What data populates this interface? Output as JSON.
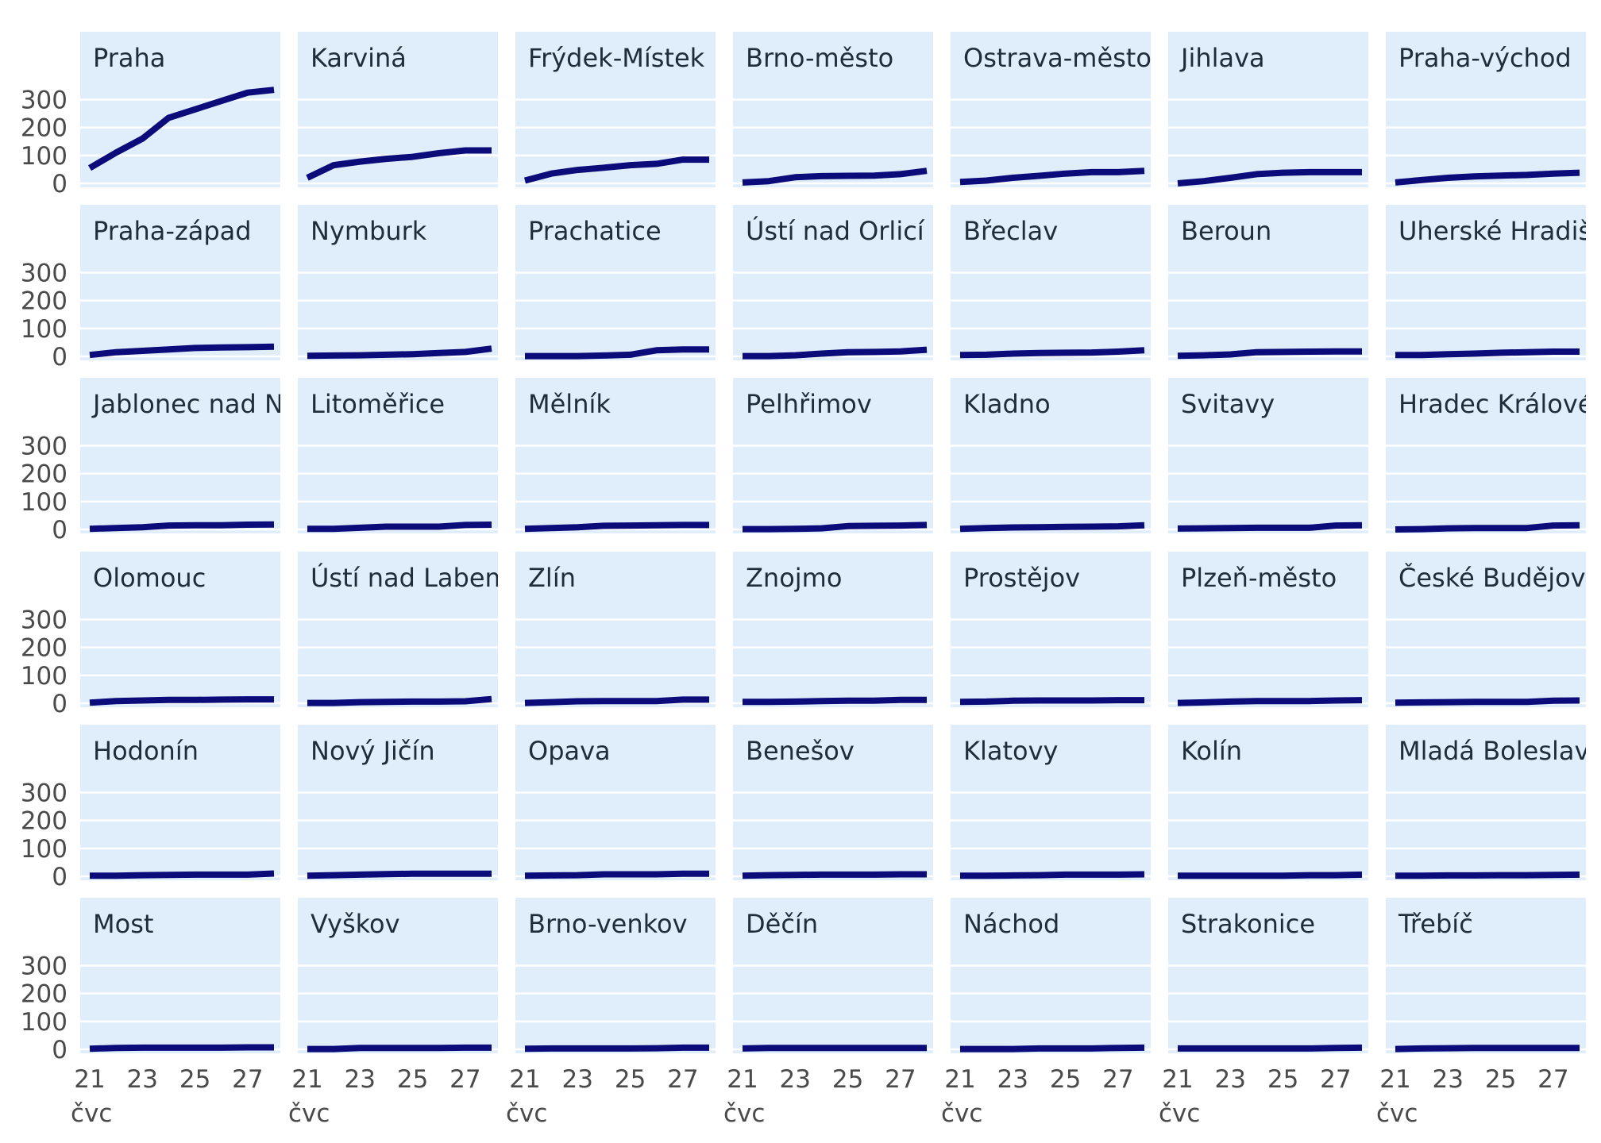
{
  "chart_data": {
    "type": "line",
    "layout": "small-multiples",
    "title": "",
    "xlabel": "",
    "ylabel": "",
    "x": [
      "2020-07-21",
      "2020-07-22",
      "2020-07-23",
      "2020-07-24",
      "2020-07-25",
      "2020-07-26",
      "2020-07-27",
      "2020-07-28"
    ],
    "x_ticks": [
      "21",
      "23",
      "25",
      "27"
    ],
    "x_tick_values": [
      "2020-07-21",
      "2020-07-23",
      "2020-07-25",
      "2020-07-27"
    ],
    "x_month_label": "čvc",
    "y_ticks": [
      0,
      100,
      200,
      300
    ],
    "ylim": [
      0,
      360
    ],
    "grid": true,
    "colors": {
      "line": "#0b0b7a",
      "panel": "#e0eefb",
      "grid": "#ffffff"
    },
    "panels": [
      {
        "name": "Praha",
        "values": [
          55,
          110,
          160,
          235,
          265,
          295,
          325,
          335
        ]
      },
      {
        "name": "Karviná",
        "values": [
          20,
          65,
          78,
          88,
          95,
          108,
          118,
          118
        ]
      },
      {
        "name": "Frýdek-Místek",
        "values": [
          10,
          35,
          48,
          56,
          65,
          70,
          85,
          85
        ]
      },
      {
        "name": "Brno-město",
        "values": [
          3,
          8,
          22,
          26,
          27,
          28,
          33,
          45
        ]
      },
      {
        "name": "Ostrava-město",
        "values": [
          5,
          10,
          20,
          27,
          35,
          40,
          40,
          45
        ]
      },
      {
        "name": "Jihlava",
        "values": [
          0,
          8,
          20,
          33,
          38,
          40,
          40,
          40
        ]
      },
      {
        "name": "Praha-východ",
        "values": [
          3,
          12,
          20,
          25,
          28,
          30,
          35,
          38
        ]
      },
      {
        "name": "Praha-západ",
        "values": [
          5,
          15,
          20,
          25,
          30,
          32,
          33,
          35
        ]
      },
      {
        "name": "Nymburk",
        "values": [
          2,
          3,
          4,
          6,
          8,
          12,
          16,
          28
        ]
      },
      {
        "name": "Prachatice",
        "values": [
          1,
          1,
          1,
          3,
          6,
          22,
          25,
          25
        ]
      },
      {
        "name": "Ústí nad Orlicí",
        "values": [
          1,
          1,
          4,
          10,
          15,
          16,
          18,
          24
        ]
      },
      {
        "name": "Břeclav",
        "values": [
          5,
          6,
          10,
          12,
          13,
          14,
          17,
          22
        ]
      },
      {
        "name": "Beroun",
        "values": [
          2,
          4,
          7,
          15,
          16,
          17,
          18,
          18
        ]
      },
      {
        "name": "Uherské Hradiště",
        "values": [
          5,
          5,
          8,
          10,
          13,
          15,
          17,
          17
        ]
      },
      {
        "name": "Jablonec nad Nisou",
        "values": [
          2,
          5,
          8,
          14,
          15,
          15,
          17,
          18
        ]
      },
      {
        "name": "Litoměřice",
        "values": [
          2,
          2,
          6,
          10,
          10,
          10,
          16,
          17
        ]
      },
      {
        "name": "Mělník",
        "values": [
          2,
          5,
          8,
          13,
          14,
          15,
          16,
          16
        ]
      },
      {
        "name": "Pelhřimov",
        "values": [
          1,
          1,
          2,
          4,
          12,
          13,
          14,
          16
        ]
      },
      {
        "name": "Kladno",
        "values": [
          2,
          5,
          7,
          8,
          9,
          10,
          11,
          15
        ]
      },
      {
        "name": "Svitavy",
        "values": [
          3,
          4,
          5,
          6,
          6,
          6,
          14,
          15
        ]
      },
      {
        "name": "Hradec Králové",
        "values": [
          0,
          1,
          4,
          5,
          5,
          5,
          14,
          15
        ]
      },
      {
        "name": "Olomouc",
        "values": [
          2,
          8,
          10,
          12,
          12,
          13,
          14,
          14
        ]
      },
      {
        "name": "Ústí nad Labem",
        "values": [
          1,
          1,
          4,
          5,
          6,
          6,
          7,
          15
        ]
      },
      {
        "name": "Zlín",
        "values": [
          1,
          4,
          7,
          8,
          8,
          8,
          13,
          13
        ]
      },
      {
        "name": "Znojmo",
        "values": [
          5,
          5,
          6,
          8,
          9,
          9,
          12,
          12
        ]
      },
      {
        "name": "Prostějov",
        "values": [
          5,
          6,
          9,
          10,
          10,
          10,
          11,
          11
        ]
      },
      {
        "name": "Plzeň-město",
        "values": [
          1,
          3,
          6,
          8,
          8,
          8,
          10,
          11
        ]
      },
      {
        "name": "České Budějovice",
        "values": [
          2,
          3,
          4,
          5,
          5,
          5,
          9,
          10
        ]
      },
      {
        "name": "Hodonín",
        "values": [
          2,
          2,
          4,
          5,
          6,
          6,
          6,
          10
        ]
      },
      {
        "name": "Nový Jičín",
        "values": [
          2,
          4,
          6,
          8,
          9,
          9,
          9,
          9
        ]
      },
      {
        "name": "Opava",
        "values": [
          2,
          3,
          4,
          7,
          7,
          7,
          9,
          9
        ]
      },
      {
        "name": "Benešov",
        "values": [
          2,
          4,
          5,
          6,
          6,
          6,
          7,
          7
        ]
      },
      {
        "name": "Klatovy",
        "values": [
          2,
          2,
          3,
          4,
          6,
          6,
          6,
          7
        ]
      },
      {
        "name": "Kolín",
        "values": [
          2,
          2,
          2,
          2,
          2,
          4,
          4,
          6
        ]
      },
      {
        "name": "Mladá Boleslav",
        "values": [
          2,
          2,
          3,
          3,
          4,
          4,
          5,
          6
        ]
      },
      {
        "name": "Most",
        "values": [
          2,
          5,
          6,
          6,
          6,
          6,
          7,
          7
        ]
      },
      {
        "name": "Vyškov",
        "values": [
          1,
          1,
          5,
          5,
          5,
          5,
          6,
          6
        ]
      },
      {
        "name": "Brno-venkov",
        "values": [
          2,
          3,
          3,
          3,
          3,
          4,
          6,
          6
        ]
      },
      {
        "name": "Děčín",
        "values": [
          3,
          5,
          5,
          5,
          5,
          5,
          5,
          5
        ]
      },
      {
        "name": "Náchod",
        "values": [
          1,
          1,
          1,
          3,
          3,
          3,
          5,
          6
        ]
      },
      {
        "name": "Strakonice",
        "values": [
          3,
          3,
          3,
          3,
          3,
          3,
          5,
          6
        ]
      },
      {
        "name": "Třebíč",
        "values": [
          1,
          3,
          4,
          5,
          5,
          5,
          5,
          5
        ]
      }
    ]
  }
}
